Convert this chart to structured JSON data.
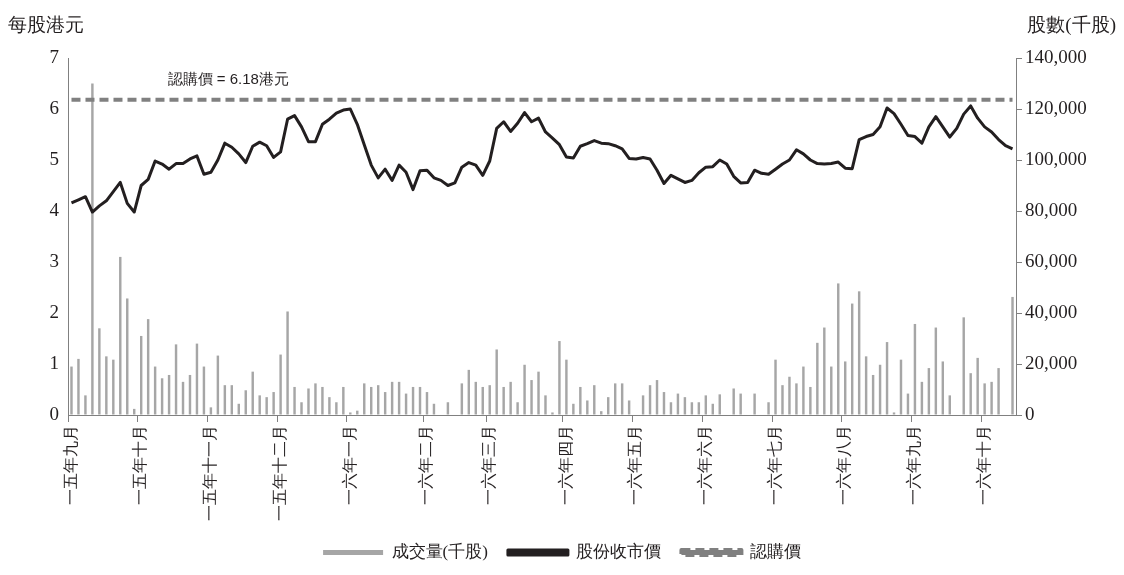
{
  "chart_data": {
    "type": "line",
    "ylabel": "每股港元",
    "y2label": "股數(千股)",
    "categories": [
      "一五年九月",
      null,
      null,
      null,
      null,
      null,
      null,
      null,
      null,
      null,
      "一五年十月",
      null,
      null,
      null,
      null,
      null,
      null,
      null,
      null,
      null,
      "一五年十一月",
      null,
      null,
      null,
      null,
      null,
      null,
      null,
      null,
      null,
      "一五年十二月",
      null,
      null,
      null,
      null,
      null,
      null,
      null,
      null,
      null,
      "一六年一月",
      null,
      null,
      null,
      null,
      null,
      null,
      null,
      null,
      null,
      null,
      "一六年二月",
      null,
      null,
      null,
      null,
      null,
      null,
      null,
      null,
      "一六年三月",
      null,
      null,
      null,
      null,
      null,
      null,
      null,
      null,
      null,
      null,
      "一六年四月",
      null,
      null,
      null,
      null,
      null,
      null,
      null,
      null,
      null,
      "一六年五月",
      null,
      null,
      null,
      null,
      null,
      null,
      null,
      null,
      null,
      "一六年六月",
      null,
      null,
      null,
      null,
      null,
      null,
      null,
      null,
      null,
      "一六年七月",
      null,
      null,
      null,
      null,
      null,
      null,
      null,
      null,
      null,
      "一六年八月",
      null,
      null,
      null,
      null,
      null,
      null,
      null,
      null,
      null,
      "一六年九月",
      null,
      null,
      null,
      null,
      null,
      null,
      null,
      null,
      null,
      "一六年十月",
      null,
      null,
      null,
      null
    ],
    "series": [
      {
        "name": "成交量(千股)",
        "type": "bar",
        "axis": "y2",
        "color": "#a6a6a6",
        "values": [
          19000,
          22000,
          7700,
          130000,
          34000,
          23000,
          21700,
          62000,
          45700,
          2400,
          31000,
          37600,
          19000,
          14400,
          15700,
          27700,
          13000,
          15700,
          28000,
          19000,
          3000,
          23300,
          11700,
          11700,
          4400,
          9700,
          17000,
          7700,
          7000,
          9000,
          23700,
          40600,
          11000,
          5000,
          10400,
          12400,
          11000,
          7000,
          5000,
          11000,
          1000,
          1700,
          12400,
          11000,
          11700,
          9000,
          13000,
          13000,
          8400,
          11000,
          11000,
          9000,
          4400,
          0,
          5000,
          0,
          12400,
          17700,
          13000,
          11000,
          11700,
          25700,
          11000,
          13000,
          5000,
          19700,
          13700,
          17000,
          7700,
          1000,
          29000,
          21700,
          4400,
          11000,
          5700,
          11700,
          1500,
          7000,
          12400,
          12400,
          5700,
          0,
          7700,
          11700,
          13700,
          9000,
          5000,
          8400,
          7000,
          5000,
          5000,
          7700,
          4400,
          8100,
          0,
          10400,
          8400,
          0,
          8400,
          0,
          5000,
          21700,
          11700,
          15000,
          12400,
          19000,
          11000,
          28300,
          34300,
          19000,
          51600,
          21000,
          43700,
          48500,
          23000,
          15700,
          19700,
          28600,
          1000,
          21700,
          8400,
          35700,
          13000,
          18400,
          34300,
          21000,
          7700,
          0,
          38300,
          16400,
          22400,
          12400,
          13000,
          18400,
          0,
          46300
        ]
      },
      {
        "name": "股份收市價",
        "color": "#231f20",
        "line_style": "solid",
        "values": [
          4.16,
          4.22,
          4.28,
          3.98,
          4.1,
          4.2,
          4.38,
          4.56,
          4.15,
          3.98,
          4.5,
          4.62,
          4.98,
          4.92,
          4.82,
          4.93,
          4.93,
          5.02,
          5.08,
          4.72,
          4.76,
          5.0,
          5.33,
          5.25,
          5.12,
          4.95,
          5.27,
          5.35,
          5.28,
          5.05,
          5.16,
          5.8,
          5.87,
          5.65,
          5.36,
          5.36,
          5.7,
          5.8,
          5.92,
          5.98,
          6.0,
          5.7,
          5.3,
          4.9,
          4.65,
          4.82,
          4.6,
          4.9,
          4.76,
          4.42,
          4.79,
          4.8,
          4.65,
          4.6,
          4.5,
          4.55,
          4.86,
          4.95,
          4.9,
          4.7,
          4.98,
          5.62,
          5.75,
          5.56,
          5.72,
          5.93,
          5.75,
          5.82,
          5.55,
          5.43,
          5.3,
          5.06,
          5.04,
          5.27,
          5.32,
          5.38,
          5.33,
          5.32,
          5.28,
          5.22,
          5.03,
          5.02,
          5.05,
          5.02,
          4.8,
          4.54,
          4.7,
          4.63,
          4.56,
          4.6,
          4.75,
          4.86,
          4.87,
          5.0,
          4.92,
          4.68,
          4.55,
          4.56,
          4.8,
          4.74,
          4.72,
          4.82,
          4.92,
          5.0,
          5.2,
          5.12,
          5.0,
          4.93,
          4.92,
          4.93,
          4.96,
          4.84,
          4.83,
          5.4,
          5.46,
          5.5,
          5.65,
          6.02,
          5.91,
          5.7,
          5.48,
          5.46,
          5.33,
          5.65,
          5.85,
          5.65,
          5.45,
          5.62,
          5.9,
          6.06,
          5.82,
          5.65,
          5.55,
          5.4,
          5.28,
          5.22
        ]
      },
      {
        "name": "認購價",
        "color": "#808080",
        "line_style": "dashed",
        "values": [
          6.18,
          6.18,
          6.18,
          6.18,
          6.18,
          6.18,
          6.18,
          6.18,
          6.18,
          6.18,
          6.18,
          6.18,
          6.18,
          6.18,
          6.18,
          6.18,
          6.18,
          6.18,
          6.18,
          6.18,
          6.18,
          6.18,
          6.18,
          6.18,
          6.18,
          6.18,
          6.18,
          6.18,
          6.18,
          6.18,
          6.18,
          6.18,
          6.18,
          6.18,
          6.18,
          6.18,
          6.18,
          6.18,
          6.18,
          6.18,
          6.18,
          6.18,
          6.18,
          6.18,
          6.18,
          6.18,
          6.18,
          6.18,
          6.18,
          6.18,
          6.18,
          6.18,
          6.18,
          6.18,
          6.18,
          6.18,
          6.18,
          6.18,
          6.18,
          6.18,
          6.18,
          6.18,
          6.18,
          6.18,
          6.18,
          6.18,
          6.18,
          6.18,
          6.18,
          6.18,
          6.18,
          6.18,
          6.18,
          6.18,
          6.18,
          6.18,
          6.18,
          6.18,
          6.18,
          6.18,
          6.18,
          6.18,
          6.18,
          6.18,
          6.18,
          6.18,
          6.18,
          6.18,
          6.18,
          6.18,
          6.18,
          6.18,
          6.18,
          6.18,
          6.18,
          6.18,
          6.18,
          6.18,
          6.18,
          6.18,
          6.18,
          6.18,
          6.18,
          6.18,
          6.18,
          6.18,
          6.18,
          6.18,
          6.18,
          6.18,
          6.18,
          6.18,
          6.18,
          6.18,
          6.18,
          6.18,
          6.18,
          6.18,
          6.18,
          6.18,
          6.18,
          6.18,
          6.18,
          6.18,
          6.18,
          6.18,
          6.18,
          6.18,
          6.18,
          6.18,
          6.18,
          6.18,
          6.18,
          6.18,
          6.18,
          6.18
        ]
      }
    ],
    "ylim": [
      0,
      7
    ],
    "yticks": [
      0,
      1,
      2,
      3,
      4,
      5,
      6,
      7
    ],
    "y2lim": [
      0,
      140000
    ],
    "y2ticks": [
      0,
      {
        "value": 20000,
        "label": "20,000"
      },
      {
        "value": 40000,
        "label": "40,000"
      },
      {
        "value": 60000,
        "label": "60,000"
      },
      {
        "value": 80000,
        "label": "80,000"
      },
      {
        "value": 100000,
        "label": "100,000"
      },
      {
        "value": 120000,
        "label": "120,000"
      },
      {
        "value": 140000,
        "label": "140,000"
      }
    ],
    "annotations": [
      "認購價 = 6.18港元"
    ],
    "legend": "bottom",
    "marker": "none"
  }
}
